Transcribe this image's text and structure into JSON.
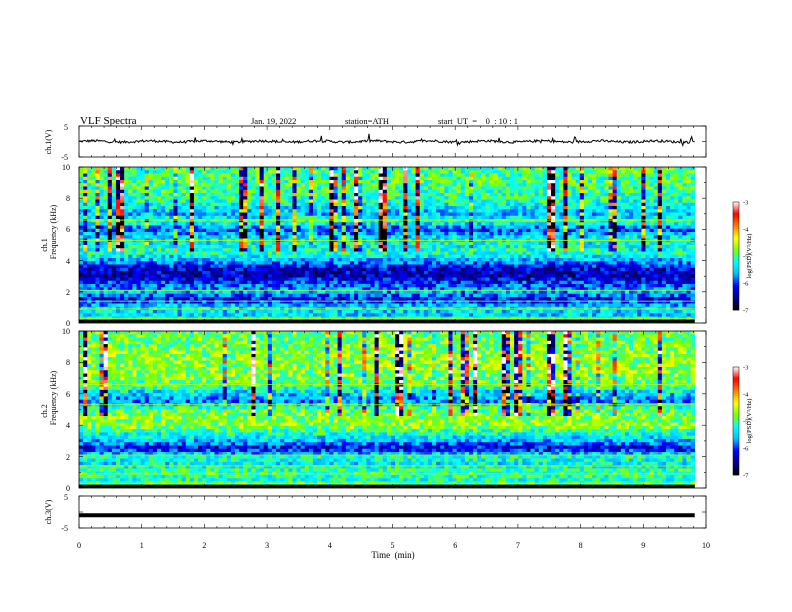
{
  "header": {
    "title": "VLF  Spectra",
    "date": "Jan. 19, 2022",
    "station": "station=ATH",
    "start_ut": "start  UT  =    0  : 10 : 1"
  },
  "panels": {
    "ch1_wave_label": "ch.1(V)",
    "ch1_spec_label": "ch.1",
    "ch2_spec_label": "ch.2",
    "ch3_wave_label": "ch.3(V)",
    "freq_label": "Frequency (kHz)",
    "wave_ticks": [
      "5",
      "-5"
    ],
    "freq_ticks": [
      "0",
      "2",
      "4",
      "6",
      "8",
      "10"
    ],
    "xlabel": "Time  (min)",
    "x_ticks": [
      "0",
      "1",
      "2",
      "3",
      "4",
      "5",
      "6",
      "7",
      "8",
      "9",
      "10"
    ]
  },
  "colorbar": {
    "label": "log(PSD)(V²/Hz)",
    "ticks": [
      "-3",
      "-4",
      "-5",
      "-6",
      "-7"
    ],
    "range": [
      -7,
      -3
    ],
    "colors": [
      "#000000",
      "#00008b",
      "#0000ff",
      "#00bfff",
      "#00ffff",
      "#7fff00",
      "#ffff00",
      "#ff7f00",
      "#ff0000",
      "#ffffff"
    ]
  },
  "chart_data": [
    {
      "type": "line",
      "name": "ch.1 waveform",
      "ylabel": "ch.1(V)",
      "ylim": [
        -5,
        5
      ],
      "xlim": [
        0,
        10
      ],
      "x_range_data": [
        0,
        9.82
      ],
      "mean_value": 0.0,
      "approx_amplitude": 1.0
    },
    {
      "type": "heatmap",
      "name": "ch.1 spectrogram",
      "xlabel": "Time  (min)",
      "ylabel": "Frequency (kHz)",
      "xlim": [
        0,
        10
      ],
      "ylim": [
        0,
        10
      ],
      "zlabel": "log(PSD)(V²/Hz)",
      "zlim": [
        -7,
        -3
      ],
      "frequency_profile_kHz": [
        0,
        0.5,
        1,
        1.5,
        2,
        2.5,
        3,
        3.5,
        4,
        4.5,
        5,
        5.5,
        6,
        6.5,
        7,
        8,
        9,
        10
      ],
      "typical_log_psd": [
        -4.8,
        -5.5,
        -5.4,
        -6.2,
        -5.6,
        -6.0,
        -6.4,
        -6.3,
        -5.6,
        -5.2,
        -5.3,
        -5.4,
        -6.0,
        -5.1,
        -5.6,
        -5.1,
        -5.0,
        -5.0
      ]
    },
    {
      "type": "heatmap",
      "name": "ch.2 spectrogram",
      "xlabel": "Time  (min)",
      "ylabel": "Frequency (kHz)",
      "xlim": [
        0,
        10
      ],
      "ylim": [
        0,
        10
      ],
      "zlabel": "log(PSD)(V²/Hz)",
      "zlim": [
        -7,
        -3
      ],
      "frequency_profile_kHz": [
        0,
        0.5,
        1,
        1.5,
        2,
        2.5,
        3,
        3.5,
        4,
        4.5,
        5,
        5.5,
        6,
        6.5,
        7,
        8,
        9,
        10
      ],
      "typical_log_psd": [
        -4.6,
        -5.2,
        -5.0,
        -5.4,
        -5.2,
        -6.3,
        -5.6,
        -5.2,
        -4.7,
        -4.8,
        -4.9,
        -5.8,
        -5.5,
        -5.0,
        -4.8,
        -4.7,
        -4.8,
        -4.9
      ]
    },
    {
      "type": "line",
      "name": "ch.3 waveform",
      "ylabel": "ch.3(V)",
      "ylim": [
        -5,
        5
      ],
      "xlim": [
        0,
        10
      ],
      "x_range_data": [
        0,
        9.82
      ],
      "mean_value": -1.0,
      "approx_amplitude": 0.1
    }
  ]
}
